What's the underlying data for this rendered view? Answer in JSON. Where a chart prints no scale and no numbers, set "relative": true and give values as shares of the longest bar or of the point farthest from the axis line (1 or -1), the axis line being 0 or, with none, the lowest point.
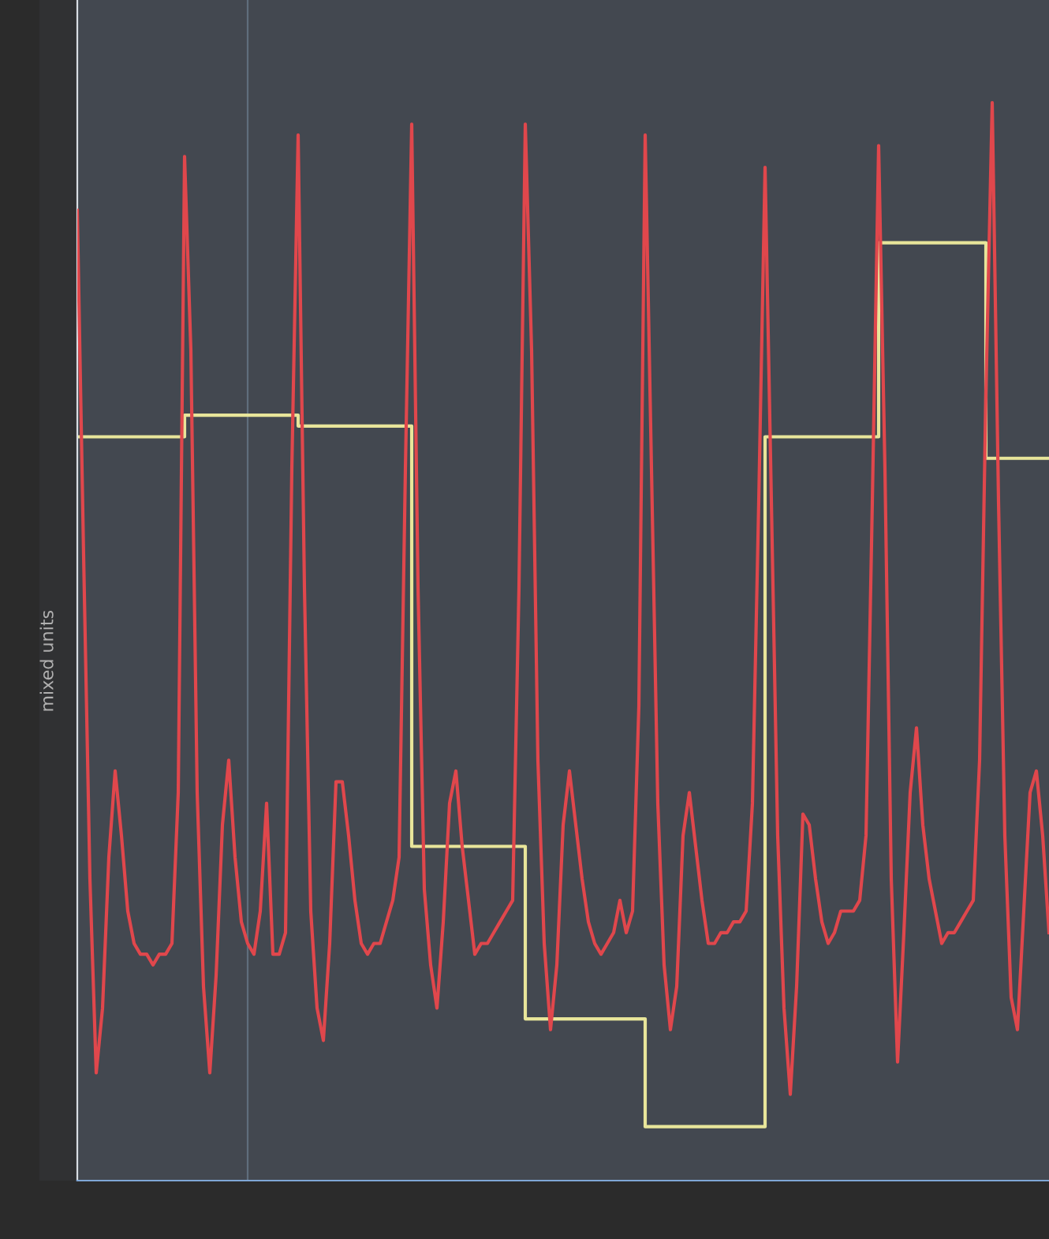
{
  "chart_data": {
    "type": "line",
    "relative": true,
    "ylabel": "mixed units",
    "categories": [
      null,
      null,
      null,
      null,
      null,
      null,
      null,
      null,
      null,
      null,
      null,
      null,
      null,
      null,
      null,
      null,
      null,
      null,
      null,
      null,
      null,
      null,
      null,
      null,
      null,
      null,
      null,
      null,
      null,
      null,
      null,
      null,
      null,
      null,
      null,
      null,
      null,
      null,
      null,
      null,
      null,
      null,
      null,
      null,
      null,
      null,
      null,
      null,
      null,
      null,
      null,
      null,
      null,
      null,
      null,
      null,
      null,
      null,
      null,
      null,
      null,
      null,
      null,
      null,
      null,
      null,
      null,
      null,
      null,
      null,
      null,
      null,
      null,
      null,
      null,
      null,
      null,
      null,
      null,
      null,
      null,
      null,
      null,
      null,
      null,
      null,
      null,
      null,
      null,
      null,
      null,
      null,
      null,
      null,
      null,
      null,
      null,
      null,
      null,
      null,
      null,
      null,
      null,
      null,
      null,
      null,
      null,
      null,
      null,
      null,
      null,
      null,
      null,
      null,
      null,
      null,
      null,
      null,
      null,
      null,
      null,
      null,
      null,
      null,
      null,
      null,
      null,
      null,
      null,
      null,
      null,
      null,
      null,
      null,
      null,
      null,
      null,
      null,
      null,
      null,
      null,
      null,
      null,
      null,
      null,
      null,
      null,
      null,
      null,
      null,
      null,
      null,
      null,
      null,
      null
    ],
    "series": [
      {
        "color": "#e0474c",
        "values": [
          0.9,
          0.58,
          0.28,
          0.1,
          0.16,
          0.3,
          0.38,
          0.32,
          0.25,
          0.22,
          0.21,
          0.21,
          0.2,
          0.21,
          0.21,
          0.22,
          0.36,
          0.95,
          0.77,
          0.36,
          0.18,
          0.1,
          0.19,
          0.33,
          0.39,
          0.3,
          0.24,
          0.22,
          0.21,
          0.25,
          0.35,
          0.21,
          0.21,
          0.23,
          0.66,
          0.97,
          0.55,
          0.25,
          0.16,
          0.13,
          0.22,
          0.37,
          0.37,
          0.32,
          0.26,
          0.22,
          0.21,
          0.22,
          0.22,
          0.24,
          0.26,
          0.3,
          0.66,
          0.98,
          0.55,
          0.27,
          0.2,
          0.16,
          0.24,
          0.35,
          0.38,
          0.31,
          0.26,
          0.21,
          0.22,
          0.22,
          0.23,
          0.24,
          0.25,
          0.26,
          0.55,
          0.98,
          0.77,
          0.39,
          0.22,
          0.14,
          0.2,
          0.33,
          0.38,
          0.33,
          0.28,
          0.24,
          0.22,
          0.21,
          0.22,
          0.23,
          0.26,
          0.23,
          0.25,
          0.44,
          0.97,
          0.66,
          0.35,
          0.2,
          0.14,
          0.18,
          0.32,
          0.36,
          0.31,
          0.26,
          0.22,
          0.22,
          0.23,
          0.23,
          0.24,
          0.24,
          0.25,
          0.35,
          0.63,
          0.94,
          0.63,
          0.32,
          0.16,
          0.08,
          0.18,
          0.34,
          0.33,
          0.28,
          0.24,
          0.22,
          0.23,
          0.25,
          0.25,
          0.25,
          0.26,
          0.32,
          0.63,
          0.96,
          0.66,
          0.28,
          0.11,
          0.23,
          0.36,
          0.42,
          0.33,
          0.28,
          0.25,
          0.22,
          0.23,
          0.23,
          0.24,
          0.25,
          0.26,
          0.39,
          0.73,
          1.0,
          0.63,
          0.32,
          0.17,
          0.14,
          0.25,
          0.36,
          0.38,
          0.32,
          0.23
        ]
      },
      {
        "type": "step",
        "color": "#e8e59a",
        "values": [
          0.69,
          0.69,
          0.69,
          0.69,
          0.69,
          0.69,
          0.69,
          0.69,
          0.69,
          0.69,
          0.69,
          0.69,
          0.69,
          0.69,
          0.69,
          0.69,
          0.69,
          0.71,
          0.71,
          0.71,
          0.71,
          0.71,
          0.71,
          0.71,
          0.71,
          0.71,
          0.71,
          0.71,
          0.71,
          0.71,
          0.71,
          0.71,
          0.71,
          0.71,
          0.71,
          0.7,
          0.7,
          0.7,
          0.7,
          0.7,
          0.7,
          0.7,
          0.7,
          0.7,
          0.7,
          0.7,
          0.7,
          0.7,
          0.7,
          0.7,
          0.7,
          0.7,
          0.7,
          0.31,
          0.31,
          0.31,
          0.31,
          0.31,
          0.31,
          0.31,
          0.31,
          0.31,
          0.31,
          0.31,
          0.31,
          0.31,
          0.31,
          0.31,
          0.31,
          0.31,
          0.31,
          0.15,
          0.15,
          0.15,
          0.15,
          0.15,
          0.15,
          0.15,
          0.15,
          0.15,
          0.15,
          0.15,
          0.15,
          0.15,
          0.15,
          0.15,
          0.15,
          0.15,
          0.15,
          0.15,
          0.05,
          0.05,
          0.05,
          0.05,
          0.05,
          0.05,
          0.05,
          0.05,
          0.05,
          0.05,
          0.05,
          0.05,
          0.05,
          0.05,
          0.05,
          0.05,
          0.05,
          0.05,
          0.05,
          0.69,
          0.69,
          0.69,
          0.69,
          0.69,
          0.69,
          0.69,
          0.69,
          0.69,
          0.69,
          0.69,
          0.69,
          0.69,
          0.69,
          0.69,
          0.69,
          0.69,
          0.69,
          0.87,
          0.87,
          0.87,
          0.87,
          0.87,
          0.87,
          0.87,
          0.87,
          0.87,
          0.87,
          0.87,
          0.87,
          0.87,
          0.87,
          0.87,
          0.87,
          0.87,
          0.67,
          0.67,
          0.67,
          0.67,
          0.67,
          0.67,
          0.67,
          0.67,
          0.67,
          0.67,
          0.67
        ]
      }
    ]
  }
}
